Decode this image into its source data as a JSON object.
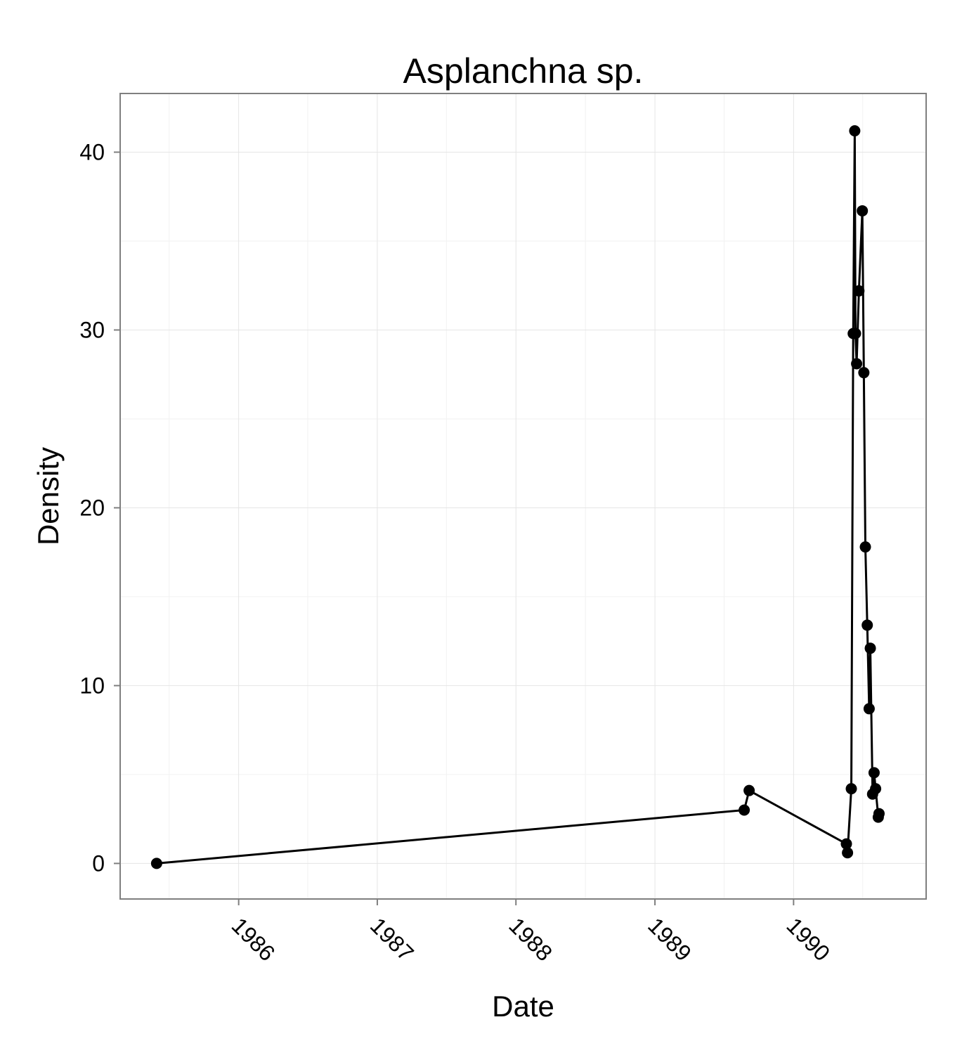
{
  "chart_data": {
    "type": "line",
    "title": "Asplanchna sp.",
    "xlabel": "Date",
    "ylabel": "Density",
    "x_type": "date",
    "xlim": [
      "1985-02-23",
      "1990-12-16"
    ],
    "ylim": [
      -2,
      43.3
    ],
    "x_ticks": [
      {
        "date": "1986-01-01",
        "label": "1986"
      },
      {
        "date": "1987-01-01",
        "label": "1987"
      },
      {
        "date": "1988-01-01",
        "label": "1988"
      },
      {
        "date": "1989-01-01",
        "label": "1989"
      },
      {
        "date": "1990-01-01",
        "label": "1990"
      }
    ],
    "y_ticks": [
      0,
      10,
      20,
      30,
      40
    ],
    "grid": true,
    "legend": "none",
    "series": [
      {
        "color": "#000000",
        "points": [
          {
            "x": "1985-05-30",
            "y": 0
          },
          {
            "x": "1989-08-24",
            "y": 3.0
          },
          {
            "x": "1989-09-06",
            "y": 4.1
          },
          {
            "x": "1990-05-20",
            "y": 1.1
          },
          {
            "x": "1990-05-23",
            "y": 0.6
          },
          {
            "x": "1990-06-02",
            "y": 4.2
          },
          {
            "x": "1990-06-07",
            "y": 29.8
          },
          {
            "x": "1990-06-11",
            "y": 41.2
          },
          {
            "x": "1990-06-13",
            "y": 29.8
          },
          {
            "x": "1990-06-16",
            "y": 28.1
          },
          {
            "x": "1990-06-22",
            "y": 32.2
          },
          {
            "x": "1990-07-01",
            "y": 36.7
          },
          {
            "x": "1990-07-05",
            "y": 27.6
          },
          {
            "x": "1990-07-09",
            "y": 17.8
          },
          {
            "x": "1990-07-14",
            "y": 13.4
          },
          {
            "x": "1990-07-19",
            "y": 8.7
          },
          {
            "x": "1990-07-22",
            "y": 12.1
          },
          {
            "x": "1990-07-28",
            "y": 3.9
          },
          {
            "x": "1990-08-01",
            "y": 5.1
          },
          {
            "x": "1990-08-05",
            "y": 4.2
          },
          {
            "x": "1990-08-12",
            "y": 2.6
          },
          {
            "x": "1990-08-14",
            "y": 2.8
          }
        ]
      }
    ]
  }
}
